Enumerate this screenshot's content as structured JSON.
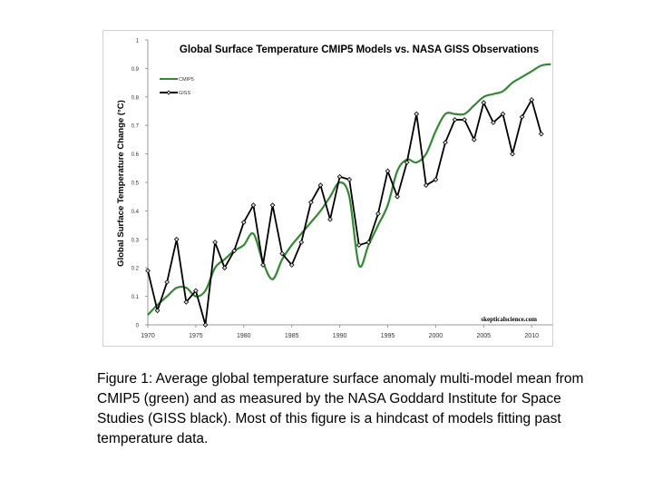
{
  "chart_data": {
    "type": "line",
    "title": "Global Surface Temperature CMIP5 Models vs. NASA GISS Observations",
    "xlabel": "",
    "ylabel": "Global Surface Temperature Change (°C)",
    "xlim": [
      1970,
      2012
    ],
    "ylim": [
      0,
      1
    ],
    "xticks": [
      "1970",
      "1975",
      "1980",
      "1985",
      "1990",
      "1995",
      "2000",
      "2005",
      "2010"
    ],
    "yticks": [
      "0",
      "0.1",
      "0.2",
      "0.3",
      "0.4",
      "0.5",
      "0.6",
      "0.7",
      "0.8",
      "0.9",
      "1"
    ],
    "grid": false,
    "legend": "top-left",
    "watermark": "skepticalscience.com",
    "series": [
      {
        "name": "CMIP5",
        "color": "#2e8b2e",
        "marker": "none",
        "x": [
          1970,
          1971,
          1972,
          1973,
          1974,
          1975,
          1976,
          1977,
          1978,
          1979,
          1980,
          1981,
          1982,
          1983,
          1984,
          1985,
          1986,
          1987,
          1988,
          1989,
          1990,
          1991,
          1992,
          1993,
          1994,
          1995,
          1996,
          1997,
          1998,
          1999,
          2000,
          2001,
          2002,
          2003,
          2004,
          2005,
          2006,
          2007,
          2008,
          2009,
          2010,
          2011,
          2012
        ],
        "y": [
          0.035,
          0.07,
          0.1,
          0.13,
          0.13,
          0.1,
          0.12,
          0.2,
          0.23,
          0.26,
          0.28,
          0.32,
          0.22,
          0.16,
          0.23,
          0.28,
          0.32,
          0.36,
          0.4,
          0.45,
          0.5,
          0.45,
          0.21,
          0.28,
          0.35,
          0.42,
          0.54,
          0.58,
          0.57,
          0.6,
          0.68,
          0.74,
          0.74,
          0.74,
          0.77,
          0.8,
          0.81,
          0.82,
          0.85,
          0.87,
          0.89,
          0.91,
          0.915
        ]
      },
      {
        "name": "GISS",
        "color": "#000000",
        "marker": "diamond",
        "x": [
          1970,
          1971,
          1972,
          1973,
          1974,
          1975,
          1976,
          1977,
          1978,
          1979,
          1980,
          1981,
          1982,
          1983,
          1984,
          1985,
          1986,
          1987,
          1988,
          1989,
          1990,
          1991,
          1992,
          1993,
          1994,
          1995,
          1996,
          1997,
          1998,
          1999,
          2000,
          2001,
          2002,
          2003,
          2004,
          2005,
          2006,
          2007,
          2008,
          2009,
          2010,
          2011
        ],
        "y": [
          0.19,
          0.05,
          0.15,
          0.3,
          0.08,
          0.12,
          0.0,
          0.29,
          0.2,
          0.26,
          0.36,
          0.42,
          0.21,
          0.42,
          0.25,
          0.21,
          0.29,
          0.43,
          0.49,
          0.37,
          0.52,
          0.51,
          0.28,
          0.29,
          0.39,
          0.54,
          0.45,
          0.57,
          0.74,
          0.49,
          0.51,
          0.64,
          0.72,
          0.72,
          0.65,
          0.78,
          0.71,
          0.74,
          0.6,
          0.73,
          0.79,
          0.67
        ]
      }
    ]
  },
  "caption": "Figure 1: Average global temperature surface anomaly multi-model mean from CMIP5 (green) and as measured by the NASA Goddard Institute for Space Studies (GISS black).  Most of this figure is a hindcast of models fitting past temperature data."
}
